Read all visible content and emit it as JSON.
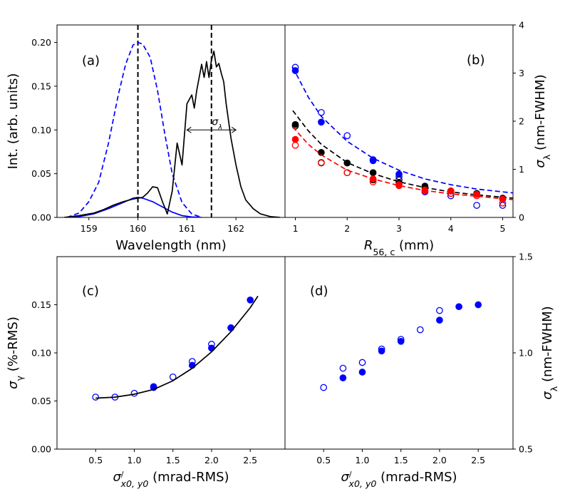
{
  "colors": {
    "blue": "#0000ff",
    "black": "#000000",
    "red": "#ff0000"
  },
  "chart_data": [
    {
      "panel": "a",
      "panel_label": "(a)",
      "type": "line",
      "xlabel": "Wavelength (nm)",
      "ylabel": "Int. (arb. units)",
      "xlim": [
        158.35,
        163.0
      ],
      "ylim": [
        0,
        0.22
      ],
      "x_ticks": [
        159,
        160,
        161,
        162
      ],
      "x_tick_labels": [
        "159",
        "160",
        "161",
        "162"
      ],
      "y_ticks": [
        0.0,
        0.05,
        0.1,
        0.15,
        0.2
      ],
      "y_tick_labels": [
        "0.00",
        "0.05",
        "0.10",
        "0.15",
        "0.20"
      ],
      "vlines": [
        160.0,
        161.5
      ],
      "annotation": {
        "text": "σλ",
        "arrow_from": 161.0,
        "arrow_to": 162.0,
        "y": 0.1
      },
      "series": [
        {
          "style": "dashed",
          "color": "blue",
          "x": [
            158.55,
            158.8,
            159.0,
            159.2,
            159.4,
            159.6,
            159.75,
            159.9,
            160.0,
            160.1,
            160.25,
            160.4,
            160.55,
            160.7,
            160.9,
            161.1,
            161.3
          ],
          "y": [
            0.0,
            0.005,
            0.018,
            0.04,
            0.085,
            0.14,
            0.175,
            0.197,
            0.2,
            0.198,
            0.183,
            0.145,
            0.095,
            0.05,
            0.017,
            0.004,
            0.0
          ]
        },
        {
          "style": "solid",
          "color": "blue",
          "x": [
            158.5,
            158.8,
            159.1,
            159.4,
            159.7,
            159.9,
            160.0,
            160.1,
            160.3,
            160.5,
            160.7,
            160.9,
            161.1,
            161.3
          ],
          "y": [
            0.0,
            0.001,
            0.004,
            0.01,
            0.017,
            0.022,
            0.023,
            0.022,
            0.018,
            0.012,
            0.006,
            0.002,
            0.0005,
            0.0
          ]
        },
        {
          "style": "solid",
          "color": "black",
          "x": [
            158.5,
            158.8,
            159.1,
            159.3,
            159.5,
            159.7,
            159.9,
            160.0,
            160.1,
            160.2,
            160.3,
            160.4,
            160.5,
            160.6,
            160.7,
            160.8,
            160.9,
            161.0,
            161.1,
            161.15,
            161.2,
            161.3,
            161.35,
            161.4,
            161.45,
            161.5,
            161.55,
            161.6,
            161.65,
            161.7,
            161.75,
            161.8,
            161.9,
            162.0,
            162.1,
            162.2,
            162.35,
            162.5,
            162.7,
            162.9
          ],
          "y": [
            0.0,
            0.002,
            0.005,
            0.009,
            0.014,
            0.018,
            0.021,
            0.022,
            0.023,
            0.028,
            0.035,
            0.034,
            0.018,
            0.004,
            0.03,
            0.085,
            0.06,
            0.13,
            0.14,
            0.125,
            0.145,
            0.175,
            0.16,
            0.178,
            0.16,
            0.18,
            0.19,
            0.172,
            0.176,
            0.165,
            0.155,
            0.13,
            0.09,
            0.06,
            0.035,
            0.02,
            0.01,
            0.004,
            0.001,
            0.0
          ]
        }
      ]
    },
    {
      "panel": "b",
      "panel_label": "(b)",
      "type": "scatter",
      "xlabel": "R56,c (mm)",
      "ylabel": "σλ (nm-FWHM)",
      "xlim": [
        0.8,
        5.2
      ],
      "ylim": [
        0,
        4
      ],
      "x_ticks": [
        1,
        2,
        3,
        4,
        5
      ],
      "x_tick_labels": [
        "1",
        "2",
        "3",
        "4",
        "5"
      ],
      "y_ticks": [
        0,
        1,
        2,
        3,
        4
      ],
      "y_tick_labels": [
        "0",
        "1",
        "2",
        "3",
        "4"
      ],
      "series": [
        {
          "color": "blue",
          "marker": "filled",
          "x": [
            1,
            1.5,
            2,
            2.5,
            3,
            3.5,
            4,
            4.5,
            5
          ],
          "y": [
            3.05,
            1.98,
            null,
            1.18,
            0.9,
            null,
            null,
            null,
            null
          ]
        },
        {
          "color": "blue",
          "marker": "open",
          "x": [
            1,
            1.5,
            2,
            2.5,
            3,
            3.5,
            4,
            4.5,
            5
          ],
          "y": [
            3.12,
            2.18,
            1.7,
            1.2,
            0.85,
            0.53,
            0.45,
            0.25,
            0.25
          ]
        },
        {
          "color": "blue",
          "marker": "dashed-fit",
          "x": [
            0.95,
            1.25,
            1.5,
            2.0,
            2.5,
            3.0,
            3.5,
            4.0,
            4.5,
            5.0,
            5.2
          ],
          "y": [
            3.12,
            2.5,
            2.1,
            1.58,
            1.23,
            0.98,
            0.8,
            0.68,
            0.59,
            0.53,
            0.51
          ]
        },
        {
          "color": "black",
          "marker": "filled",
          "x": [
            1,
            1.5,
            2,
            2.5,
            3,
            3.5,
            4,
            4.5,
            5
          ],
          "y": [
            1.93,
            1.35,
            1.13,
            0.93,
            0.72,
            0.65,
            0.55,
            0.5,
            0.4
          ]
        },
        {
          "color": "black",
          "marker": "open",
          "x": [
            1,
            1.5,
            2,
            2.5,
            3,
            3.5,
            4,
            4.5,
            5
          ],
          "y": [
            1.9,
            1.14,
            0.93,
            0.78,
            0.78,
            0.62,
            0.5,
            0.48,
            0.38
          ]
        },
        {
          "color": "black",
          "marker": "dashed-fit",
          "x": [
            0.95,
            1.25,
            1.5,
            2.0,
            2.5,
            3.0,
            3.5,
            4.0,
            4.5,
            5.0,
            5.2
          ],
          "y": [
            2.22,
            1.8,
            1.52,
            1.14,
            0.91,
            0.74,
            0.62,
            0.53,
            0.47,
            0.42,
            0.4
          ]
        },
        {
          "color": "red",
          "marker": "filled",
          "x": [
            1,
            1.5,
            2,
            2.5,
            3,
            3.5,
            4,
            4.5,
            5
          ],
          "y": [
            1.62,
            null,
            null,
            0.8,
            0.68,
            0.55,
            0.55,
            0.48,
            0.38
          ]
        },
        {
          "color": "red",
          "marker": "open",
          "x": [
            1,
            1.5,
            2,
            2.5,
            3,
            3.5,
            4,
            4.5,
            5
          ],
          "y": [
            1.5,
            1.13,
            0.93,
            0.74,
            0.66,
            0.57,
            0.5,
            0.45,
            0.3
          ]
        },
        {
          "color": "red",
          "marker": "dashed-fit",
          "x": [
            0.95,
            1.25,
            1.5,
            2.0,
            2.5,
            3.0,
            3.5,
            4.0,
            4.5,
            5.0,
            5.2
          ],
          "y": [
            1.88,
            1.52,
            1.3,
            0.98,
            0.8,
            0.66,
            0.56,
            0.49,
            0.44,
            0.39,
            0.37
          ]
        }
      ]
    },
    {
      "panel": "c",
      "panel_label": "(c)",
      "type": "scatter",
      "xlabel": "σ/x0, y0 (mrad-RMS)",
      "ylabel": "σγ (%-RMS)",
      "xlim": [
        0.0,
        2.95
      ],
      "ylim": [
        0,
        0.2
      ],
      "x_ticks": [
        0.5,
        1.0,
        1.5,
        2.0,
        2.5
      ],
      "x_tick_labels": [
        "0.5",
        "1.0",
        "1.5",
        "2.0",
        "2.5"
      ],
      "y_ticks": [
        0.0,
        0.05,
        0.1,
        0.15
      ],
      "y_tick_labels": [
        "0.00",
        "0.05",
        "0.10",
        "0.15"
      ],
      "series": [
        {
          "color": "blue",
          "marker": "filled",
          "x": [
            1.25,
            1.75,
            2.0,
            2.25,
            2.5
          ],
          "y": [
            0.064,
            0.087,
            0.105,
            0.126,
            0.155
          ]
        },
        {
          "color": "blue",
          "marker": "open",
          "x": [
            0.5,
            0.75,
            1.0,
            1.25,
            1.5,
            1.75,
            2.0,
            2.25
          ],
          "y": [
            0.054,
            0.054,
            0.058,
            0.065,
            0.075,
            0.091,
            0.109,
            0.126
          ]
        },
        {
          "color": "black",
          "marker": "solid-fit",
          "x": [
            0.5,
            0.75,
            1.0,
            1.25,
            1.5,
            1.75,
            2.0,
            2.25,
            2.5,
            2.6
          ],
          "y": [
            0.053,
            0.054,
            0.057,
            0.062,
            0.071,
            0.084,
            0.101,
            0.122,
            0.147,
            0.159
          ]
        }
      ]
    },
    {
      "panel": "d",
      "panel_label": "(d)",
      "type": "scatter",
      "xlabel": "σ/x0, y0 (mrad-RMS)",
      "ylabel": "σλ (nm-FWHM)",
      "xlim": [
        0.0,
        2.95
      ],
      "ylim": [
        0.5,
        1.5
      ],
      "x_ticks": [
        0.5,
        1.0,
        1.5,
        2.0,
        2.5
      ],
      "x_tick_labels": [
        "0.5",
        "1.0",
        "1.5",
        "2.0",
        "2.5"
      ],
      "y_ticks": [
        0.5,
        1.0,
        1.5
      ],
      "y_tick_labels": [
        "0.5",
        "1.0",
        "1.5"
      ],
      "series": [
        {
          "color": "blue",
          "marker": "filled",
          "x": [
            0.75,
            1.0,
            1.25,
            1.5,
            2.0,
            2.25,
            2.5
          ],
          "y": [
            0.87,
            0.9,
            1.01,
            1.06,
            1.17,
            1.24,
            1.25
          ]
        },
        {
          "color": "blue",
          "marker": "open",
          "x": [
            0.5,
            0.75,
            1.0,
            1.25,
            1.5,
            1.75,
            2.0
          ],
          "y": [
            0.82,
            0.92,
            0.95,
            1.02,
            1.07,
            1.12,
            1.22
          ]
        }
      ]
    }
  ]
}
